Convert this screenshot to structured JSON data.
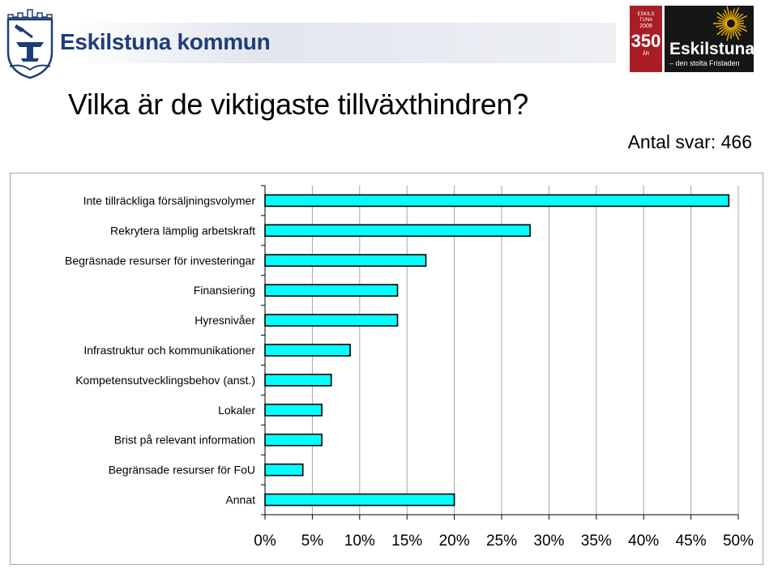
{
  "header": {
    "org_name": "Eskilstuna kommun",
    "badge": {
      "line1": "ESKILS",
      "line2": "TUNA",
      "line3": "2009",
      "big": "350",
      "small": "ÅR"
    },
    "brand": {
      "name": "Eskilstuna",
      "tagline": "– den stolta Fristaden"
    },
    "colors": {
      "org_blue": "#1f3e78",
      "badge_red": "#a81e24",
      "brand_black": "#161616"
    }
  },
  "slide": {
    "title": "Vilka är de viktigaste tillväxthindren?",
    "answer_count": "Antal svar: 466"
  },
  "chart_data": {
    "type": "bar",
    "orientation": "horizontal",
    "categories": [
      "Inte tillräckliga försäljningsvolymer",
      "Rekrytera lämplig arbetskraft",
      "Begräsnade resurser för investeringar",
      "Finansiering",
      "Hyresnivåer",
      "Infrastruktur och kommunikationer",
      "Kompetensutvecklingsbehov (anst.)",
      "Lokaler",
      "Brist på relevant information",
      "Begränsade resurser för FoU",
      "Annat"
    ],
    "values": [
      49,
      28,
      17,
      14,
      14,
      9,
      7,
      6,
      6,
      4,
      20
    ],
    "value_unit": "%",
    "xlim": [
      0,
      50
    ],
    "xticks": [
      "0%",
      "5%",
      "10%",
      "15%",
      "20%",
      "25%",
      "30%",
      "35%",
      "40%",
      "45%",
      "50%"
    ],
    "grid": "vertical",
    "bar_color": "#00ffff",
    "bar_border": "#000000",
    "grid_color": "#a6a6a6"
  }
}
